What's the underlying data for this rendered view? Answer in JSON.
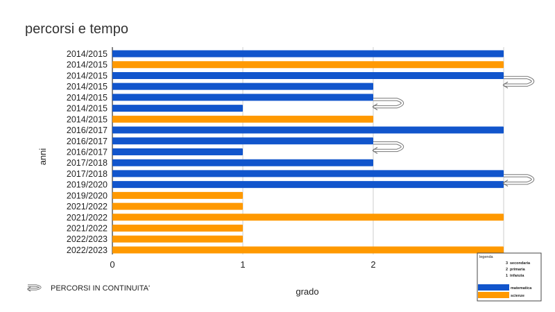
{
  "chart_data": {
    "type": "bar",
    "orientation": "horizontal",
    "title": "percorsi e tempo",
    "xlabel": "grado",
    "ylabel": "anni",
    "xlim": [
      0,
      3
    ],
    "xticks": [
      0,
      1,
      2
    ],
    "grid": true,
    "bars": [
      {
        "category": "2014/2015",
        "value": 3,
        "subject": "matematica"
      },
      {
        "category": "2014/2015",
        "value": 3,
        "subject": "scienze"
      },
      {
        "category": "2014/2015",
        "value": 3,
        "subject": "matematica"
      },
      {
        "category": "2014/2015",
        "value": 2,
        "subject": "matematica"
      },
      {
        "category": "2014/2015",
        "value": 2,
        "subject": "matematica"
      },
      {
        "category": "2014/2015",
        "value": 1,
        "subject": "matematica"
      },
      {
        "category": "2014/2015",
        "value": 2,
        "subject": "scienze"
      },
      {
        "category": "2016/2017",
        "value": 3,
        "subject": "matematica"
      },
      {
        "category": "2016/2017",
        "value": 2,
        "subject": "matematica"
      },
      {
        "category": "2016/2017",
        "value": 1,
        "subject": "matematica"
      },
      {
        "category": "2017/2018",
        "value": 2,
        "subject": "matematica"
      },
      {
        "category": "2017/2018",
        "value": 3,
        "subject": "matematica"
      },
      {
        "category": "2019/2020",
        "value": 3,
        "subject": "matematica"
      },
      {
        "category": "2019/2020",
        "value": 1,
        "subject": "scienze"
      },
      {
        "category": "2021/2022",
        "value": 1,
        "subject": "scienze"
      },
      {
        "category": "2021/2022",
        "value": 3,
        "subject": "scienze"
      },
      {
        "category": "2021/2022",
        "value": 1,
        "subject": "scienze"
      },
      {
        "category": "2022/2023",
        "value": 1,
        "subject": "scienze"
      },
      {
        "category": "2022/2023",
        "value": 3,
        "subject": "scienze"
      }
    ],
    "continuity_arrows": [
      {
        "from_row": 2,
        "to_row": 3,
        "at_value": 3
      },
      {
        "from_row": 4,
        "to_row": 5,
        "at_value": 2
      },
      {
        "from_row": 8,
        "to_row": 9,
        "at_value": 2
      },
      {
        "from_row": 11,
        "to_row": 12,
        "at_value": 3
      }
    ],
    "legend": {
      "placement": "bottom-right",
      "title": "legenda",
      "levels": [
        {
          "value": "3",
          "label": "secondaria"
        },
        {
          "value": "2",
          "label": "primaria"
        },
        {
          "value": "1",
          "label": "infanzia"
        }
      ],
      "series": [
        {
          "name": "matematica",
          "color": "#1155cc"
        },
        {
          "name": "scienze",
          "color": "#ff9900"
        }
      ]
    },
    "footnote": "PERCORSI IN CONTINUITA'"
  },
  "colors": {
    "matematica": "#1155cc",
    "scienze": "#ff9900",
    "grid": "#cccccc",
    "axis": "#333333"
  }
}
